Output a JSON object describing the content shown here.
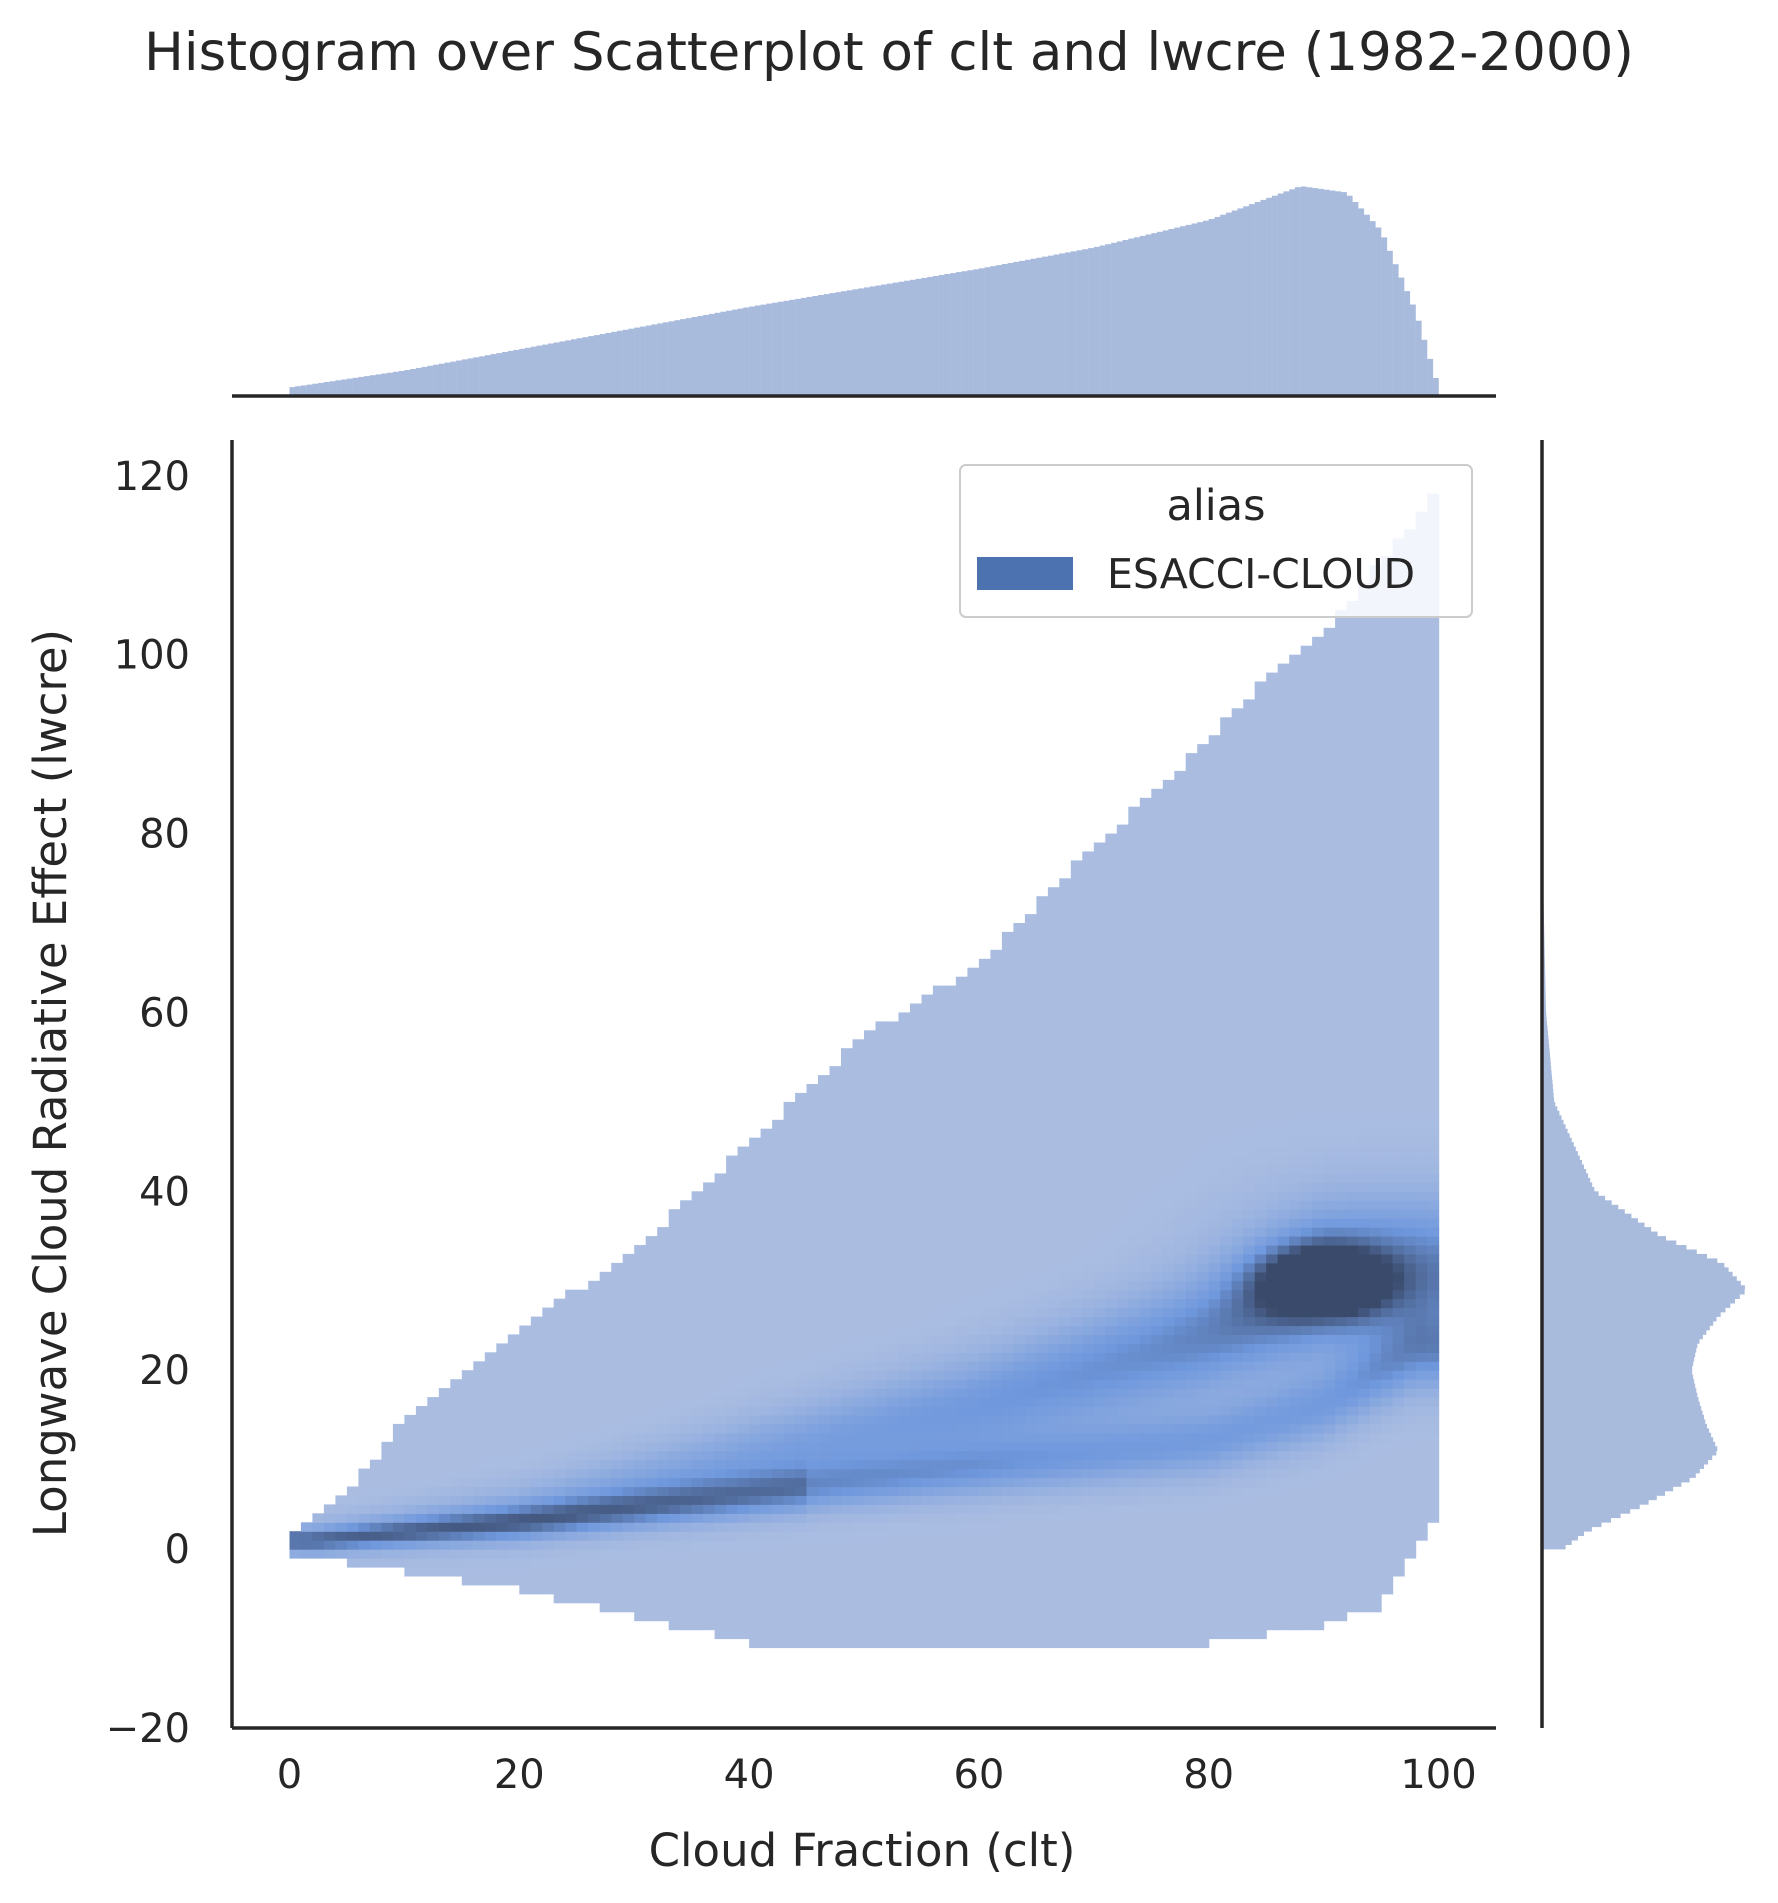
{
  "title": "Histogram over Scatterplot of clt and lwcre (1982-2000)",
  "colors": {
    "series": "#4c72b0",
    "light_fill": "#b9c6e2",
    "mid_fill": "#6f98dd",
    "dark_core": "#3a4a6b",
    "axis": "#262626",
    "marginal": "#a9bbdd"
  },
  "chart_data": {
    "type": "heatmap",
    "subtype": "joint bivariate histogram with marginal histograms",
    "xlabel": "Cloud Fraction (clt)",
    "ylabel": "Longwave Cloud Radiative Effect (lwcre)",
    "xlim": [
      -5,
      105
    ],
    "ylim": [
      -20,
      124
    ],
    "xticks": [
      0,
      20,
      40,
      60,
      80,
      100
    ],
    "yticks": [
      -20,
      0,
      20,
      40,
      60,
      80,
      100,
      120
    ],
    "grid": false,
    "legend": {
      "title": "alias",
      "position": "upper right",
      "entries": [
        {
          "label": "ESACCI-CLOUD",
          "color": "#4c72b0"
        }
      ]
    },
    "support_envelope": {
      "x": [
        0,
        5,
        10,
        20,
        30,
        40,
        50,
        60,
        70,
        80,
        85,
        90,
        95,
        100
      ],
      "upper": [
        1,
        6,
        14,
        24,
        33,
        45,
        57,
        65,
        78,
        90,
        97,
        102,
        110,
        118
      ],
      "lower": [
        -1,
        -1,
        -2,
        -4,
        -7,
        -10,
        -11,
        -11,
        -11,
        -10,
        -9,
        -8,
        -6,
        5
      ]
    },
    "density_ridges": [
      {
        "name": "upper branch",
        "x": [
          2,
          20,
          40,
          60,
          80,
          90,
          98
        ],
        "y": [
          1,
          4,
          10,
          16,
          24,
          30,
          31
        ]
      },
      {
        "name": "lower branch",
        "x": [
          2,
          20,
          40,
          60,
          80,
          90,
          98
        ],
        "y": [
          1,
          3,
          6,
          9,
          12,
          16,
          22
        ]
      }
    ],
    "peak": {
      "x": 90,
      "y": 30
    },
    "marginal_x": {
      "x": [
        0,
        10,
        20,
        30,
        40,
        50,
        60,
        70,
        80,
        85,
        88,
        92,
        95,
        98,
        100
      ],
      "density": [
        0.04,
        0.12,
        0.22,
        0.32,
        0.42,
        0.51,
        0.6,
        0.7,
        0.83,
        0.93,
        0.99,
        0.96,
        0.78,
        0.4,
        0.04
      ]
    },
    "marginal_y": {
      "y": [
        0,
        2,
        5,
        8,
        11,
        14,
        17,
        20,
        23,
        26,
        29,
        32,
        35,
        40,
        50,
        60,
        75
      ],
      "density": [
        0.1,
        0.22,
        0.5,
        0.74,
        0.86,
        0.8,
        0.76,
        0.73,
        0.76,
        0.86,
        1.0,
        0.88,
        0.58,
        0.26,
        0.06,
        0.02,
        0.005
      ]
    }
  }
}
